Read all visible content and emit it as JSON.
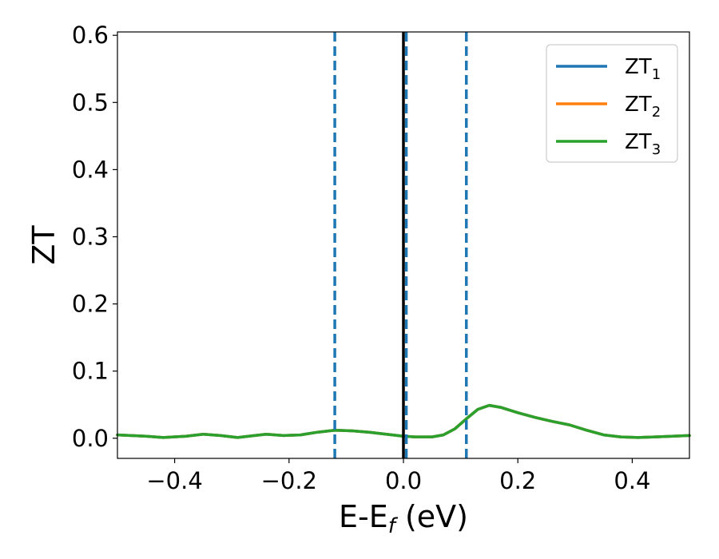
{
  "chart_data": {
    "type": "line",
    "xlabel": "E-E",
    "xlabel_sub": "f",
    "xlabel_unit": " (eV)",
    "ylabel": "ZT",
    "xlim": [
      -0.5,
      0.5
    ],
    "ylim": [
      -0.03,
      0.605
    ],
    "grid": false,
    "legend_position": "top-right",
    "x_ticks": [
      -0.4,
      -0.2,
      0.0,
      0.2,
      0.4
    ],
    "x_tick_labels": [
      "−0.4",
      "−0.2",
      "0.0",
      "0.2",
      "0.4"
    ],
    "y_ticks": [
      0.0,
      0.1,
      0.2,
      0.3,
      0.4,
      0.5,
      0.6
    ],
    "y_tick_labels": [
      "0.0",
      "0.1",
      "0.2",
      "0.3",
      "0.4",
      "0.5",
      "0.6"
    ],
    "series": [
      {
        "name": "ZT",
        "name_sub": "1",
        "color": "#1f77b4",
        "x": [
          -0.5,
          -0.45,
          -0.42,
          -0.38,
          -0.35,
          -0.32,
          -0.29,
          -0.26,
          -0.24,
          -0.21,
          -0.18,
          -0.15,
          -0.12,
          -0.09,
          -0.06,
          -0.03,
          0.0,
          0.02,
          0.05,
          0.07,
          0.09,
          0.11,
          0.13,
          0.15,
          0.17,
          0.2,
          0.23,
          0.26,
          0.29,
          0.32,
          0.35,
          0.38,
          0.41,
          0.44,
          0.47,
          0.5
        ],
        "y": [
          0.005,
          0.003,
          0.001,
          0.003,
          0.006,
          0.004,
          0.001,
          0.004,
          0.006,
          0.004,
          0.005,
          0.009,
          0.012,
          0.011,
          0.009,
          0.006,
          0.003,
          0.002,
          0.002,
          0.005,
          0.014,
          0.029,
          0.043,
          0.049,
          0.046,
          0.038,
          0.031,
          0.025,
          0.02,
          0.012,
          0.005,
          0.002,
          0.001,
          0.002,
          0.003,
          0.004
        ]
      },
      {
        "name": "ZT",
        "name_sub": "2",
        "color": "#ff7f0e",
        "x": [
          -0.5,
          -0.45,
          -0.42,
          -0.38,
          -0.35,
          -0.32,
          -0.29,
          -0.26,
          -0.24,
          -0.21,
          -0.18,
          -0.15,
          -0.12,
          -0.09,
          -0.06,
          -0.03,
          0.0,
          0.02,
          0.05,
          0.07,
          0.09,
          0.11,
          0.13,
          0.15,
          0.17,
          0.2,
          0.23,
          0.26,
          0.29,
          0.32,
          0.35,
          0.38,
          0.41,
          0.44,
          0.47,
          0.5
        ],
        "y": [
          0.005,
          0.003,
          0.001,
          0.003,
          0.006,
          0.004,
          0.001,
          0.004,
          0.006,
          0.004,
          0.005,
          0.009,
          0.012,
          0.011,
          0.009,
          0.006,
          0.003,
          0.002,
          0.002,
          0.005,
          0.014,
          0.029,
          0.043,
          0.049,
          0.046,
          0.038,
          0.031,
          0.025,
          0.02,
          0.012,
          0.005,
          0.002,
          0.001,
          0.002,
          0.003,
          0.004
        ]
      },
      {
        "name": "ZT",
        "name_sub": "3",
        "color": "#2ca02c",
        "x": [
          -0.5,
          -0.45,
          -0.42,
          -0.38,
          -0.35,
          -0.32,
          -0.29,
          -0.26,
          -0.24,
          -0.21,
          -0.18,
          -0.15,
          -0.12,
          -0.09,
          -0.06,
          -0.03,
          0.0,
          0.02,
          0.05,
          0.07,
          0.09,
          0.11,
          0.13,
          0.15,
          0.17,
          0.2,
          0.23,
          0.26,
          0.29,
          0.32,
          0.35,
          0.38,
          0.41,
          0.44,
          0.47,
          0.5
        ],
        "y": [
          0.005,
          0.003,
          0.001,
          0.003,
          0.006,
          0.004,
          0.001,
          0.004,
          0.006,
          0.004,
          0.005,
          0.009,
          0.012,
          0.011,
          0.009,
          0.006,
          0.003,
          0.002,
          0.002,
          0.005,
          0.014,
          0.029,
          0.043,
          0.049,
          0.046,
          0.038,
          0.031,
          0.025,
          0.02,
          0.012,
          0.005,
          0.002,
          0.001,
          0.002,
          0.003,
          0.004
        ]
      }
    ],
    "vlines": [
      {
        "x": -0.12,
        "style": "dashed",
        "color": "#1f77b4"
      },
      {
        "x": 0.0,
        "style": "solid",
        "color": "#000000"
      },
      {
        "x": 0.005,
        "style": "dashed",
        "color": "#1f77b4"
      },
      {
        "x": 0.11,
        "style": "dashed",
        "color": "#1f77b4"
      }
    ]
  }
}
